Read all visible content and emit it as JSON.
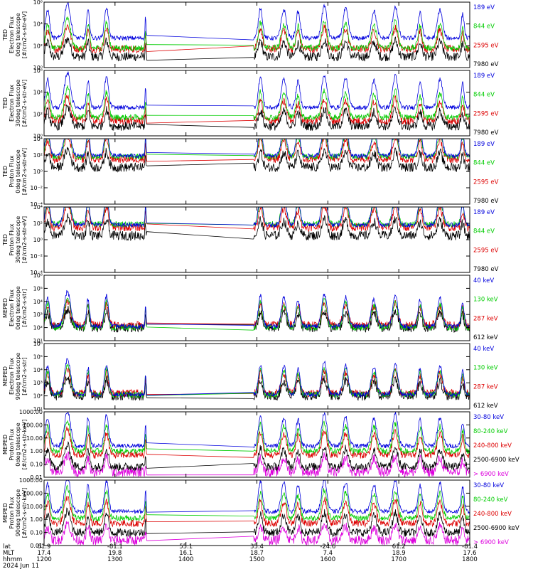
{
  "chart_data": {
    "type": "line",
    "date": "2024 Jun 11",
    "x": {
      "hour_ticks": [
        "1200",
        "1300",
        "1400",
        "1500",
        "1600",
        "1700",
        "1800"
      ],
      "hour_range": [
        12.0,
        18.0
      ],
      "row_labels": [
        "lat",
        "MLT",
        "hhmm"
      ],
      "lat": [
        "61.9",
        "-81.1",
        "55.1",
        "35.4",
        "-24.6",
        "61.2",
        "-81.4"
      ],
      "mlt": [
        "17.4",
        "19.8",
        "16.1",
        "18.7",
        "7.4",
        "18.9",
        "17.6"
      ]
    },
    "data_gap": [
      13.45,
      14.95
    ],
    "panels": [
      {
        "ylabel": [
          "TED",
          "Electron Flux",
          "0deg telescope",
          "[#/cm2-s-str-eV]"
        ],
        "scale": "log",
        "ylim": [
          1,
          1000000
        ],
        "yticks": [
          "10⁰",
          "10²",
          "10⁴",
          "10⁶"
        ],
        "series": [
          {
            "name": "7980 eV",
            "color": "#000000",
            "base": 1.0
          },
          {
            "name": "2595 eV",
            "color": "#dd0000",
            "base": 1.7
          },
          {
            "name": "844 eV",
            "color": "#00cc00",
            "base": 1.8
          },
          {
            "name": "189 eV",
            "color": "#0000dd",
            "base": 2.7
          }
        ]
      },
      {
        "ylabel": [
          "TED",
          "Electron Flux",
          "30deg telescope",
          "[#/cm2-s-str-eV]"
        ],
        "scale": "log",
        "ylim": [
          1,
          1000000
        ],
        "yticks": [
          "10⁰",
          "10²",
          "10⁴",
          "10⁶"
        ],
        "series": [
          {
            "name": "7980 eV",
            "color": "#000000",
            "base": 0.9
          },
          {
            "name": "2595 eV",
            "color": "#dd0000",
            "base": 1.4
          },
          {
            "name": "844 eV",
            "color": "#00cc00",
            "base": 1.7
          },
          {
            "name": "189 eV",
            "color": "#0000dd",
            "base": 2.6
          }
        ]
      },
      {
        "ylabel": [
          "TED",
          "Proton Flux",
          "0deg telescope",
          "[#/cm2-s-str-eV]"
        ],
        "scale": "log",
        "ylim": [
          0.0001,
          10000
        ],
        "yticks": [
          "10⁻⁴",
          "10⁻²",
          "10⁰",
          "10²",
          "10⁴"
        ],
        "series": [
          {
            "name": "7980 eV",
            "color": "#000000",
            "base": 0.5
          },
          {
            "name": "2595 eV",
            "color": "#dd0000",
            "base": 1.5
          },
          {
            "name": "844 eV",
            "color": "#00cc00",
            "base": 1.8
          },
          {
            "name": "189 eV",
            "color": "#0000dd",
            "base": 1.9
          }
        ]
      },
      {
        "ylabel": [
          "TED",
          "Proton Flux",
          "30deg telescope",
          "[#/cm2-s-str-eV]"
        ],
        "scale": "log",
        "ylim": [
          0.0001,
          10000
        ],
        "yticks": [
          "10⁻⁴",
          "10⁻²",
          "10⁰",
          "10²",
          "10⁴"
        ],
        "series": [
          {
            "name": "7980 eV",
            "color": "#000000",
            "base": 0.5
          },
          {
            "name": "2595 eV",
            "color": "#dd0000",
            "base": 1.5
          },
          {
            "name": "844 eV",
            "color": "#00cc00",
            "base": 1.9
          },
          {
            "name": "189 eV",
            "color": "#0000dd",
            "base": 1.8
          }
        ]
      },
      {
        "ylabel": [
          "MEPED",
          "Electron Flux",
          "0deg telescope",
          "[#/cm2-s-str]"
        ],
        "scale": "log",
        "ylim": [
          10,
          1000000
        ],
        "yticks": [
          "10¹",
          "10²",
          "10³",
          "10⁴",
          "10⁵",
          "10⁶"
        ],
        "series": [
          {
            "name": "612 keV",
            "color": "#000000",
            "base": 2.0
          },
          {
            "name": "287 keV",
            "color": "#dd0000",
            "base": 2.2
          },
          {
            "name": "130 keV",
            "color": "#00cc00",
            "base": 2.0
          },
          {
            "name": "40 keV",
            "color": "#0000dd",
            "base": 2.1
          }
        ]
      },
      {
        "ylabel": [
          "MEPED",
          "Electron Flux",
          "90deg telescope",
          "[#/cm2-s-str]"
        ],
        "scale": "log",
        "ylim": [
          10,
          1000000
        ],
        "yticks": [
          "10¹",
          "10²",
          "10³",
          "10⁴",
          "10⁵",
          "10⁶"
        ],
        "series": [
          {
            "name": "612 keV",
            "color": "#000000",
            "base": 2.0
          },
          {
            "name": "287 keV",
            "color": "#dd0000",
            "base": 2.2
          },
          {
            "name": "130 keV",
            "color": "#00cc00",
            "base": 2.1
          },
          {
            "name": "40 keV",
            "color": "#0000dd",
            "base": 2.1
          }
        ]
      },
      {
        "ylabel": [
          "MEPED",
          "Proton Flux",
          "0deg telescope",
          "[#/cm2-s-str-keV]"
        ],
        "scale": "log",
        "ylim": [
          0.01,
          1000
        ],
        "yticks": [
          "0.01",
          "0.10",
          "1.00",
          "10.00",
          "100.00",
          "1000.00"
        ],
        "series": [
          {
            "name": "> 6900 keV",
            "color": "#dd00dd",
            "base": -1.6
          },
          {
            "name": "2500-6900 keV",
            "color": "#000000",
            "base": -1.2
          },
          {
            "name": "240-800 keV",
            "color": "#dd0000",
            "base": -0.3
          },
          {
            "name": "80-240 keV",
            "color": "#00cc00",
            "base": 0.0
          },
          {
            "name": "30-80 keV",
            "color": "#0000dd",
            "base": 0.4
          }
        ]
      },
      {
        "ylabel": [
          "MEPED",
          "Proton Flux",
          "90deg telescope",
          "[#/cm2-s-str-keV]"
        ],
        "scale": "log",
        "ylim": [
          0.01,
          1000
        ],
        "yticks": [
          "0.01",
          "0.10",
          "1.00",
          "10.00",
          "100.00",
          "1000.00"
        ],
        "series": [
          {
            "name": "> 6900 keV",
            "color": "#dd00dd",
            "base": -1.6
          },
          {
            "name": "2500-6900 keV",
            "color": "#000000",
            "base": -1.0
          },
          {
            "name": "240-800 keV",
            "color": "#dd0000",
            "base": -0.3
          },
          {
            "name": "80-240 keV",
            "color": "#00cc00",
            "base": 0.1
          },
          {
            "name": "30-80 keV",
            "color": "#0000dd",
            "base": 0.6
          }
        ]
      }
    ],
    "grid": false,
    "legend_placement": "right"
  }
}
